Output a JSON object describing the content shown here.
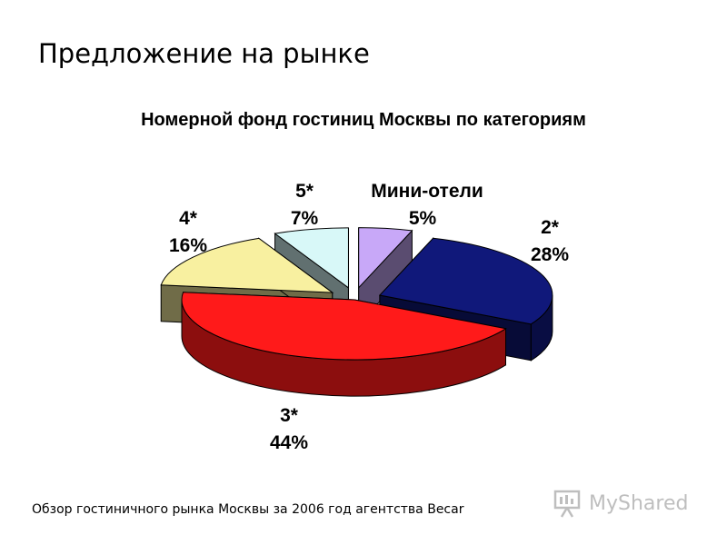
{
  "slide": {
    "title": "Предложение на рынке",
    "footer": "Обзор гостиничного рынка Москвы за 2006 год агентства Becar",
    "watermark": "MyShared"
  },
  "chart_data": {
    "type": "pie",
    "title": "Номерной фонд гостиниц Москвы по категориям",
    "three_d": true,
    "exploded": true,
    "slices": [
      {
        "label": "Мини-отели",
        "value": 5,
        "value_label": "5%",
        "color": "#c8a8f8"
      },
      {
        "label": "2*",
        "value": 28,
        "value_label": "28%",
        "color": "#10187a"
      },
      {
        "label": "3*",
        "value": 44,
        "value_label": "44%",
        "color": "#ff1a1a"
      },
      {
        "label": "4*",
        "value": 16,
        "value_label": "16%",
        "color": "#f8f0a0"
      },
      {
        "label": "5*",
        "value": 7,
        "value_label": "7%",
        "color": "#d8f8f8"
      }
    ]
  }
}
